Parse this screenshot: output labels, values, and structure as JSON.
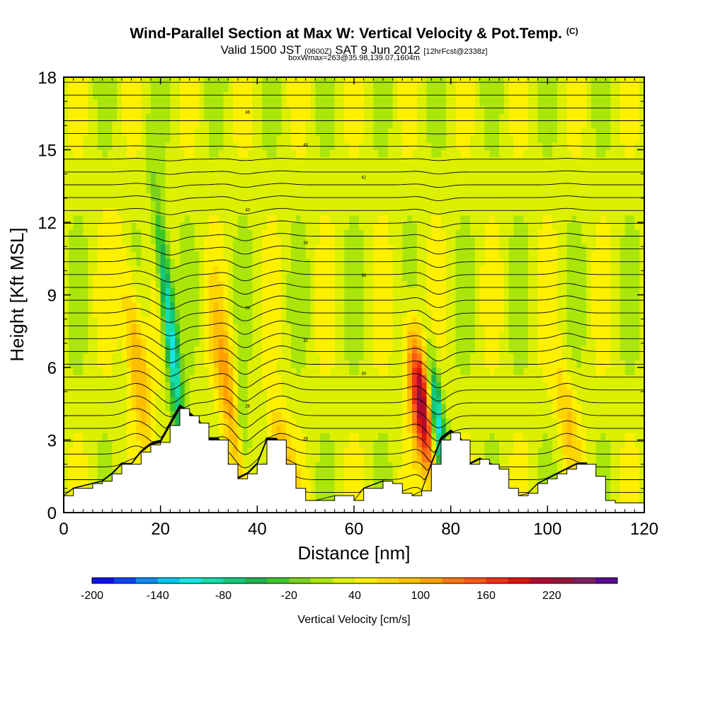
{
  "chart_data": {
    "type": "heatmap",
    "title": "Wind-Parallel Section at Max W: Vertical Velocity & Pot.Temp.",
    "title_suffix": "(C)",
    "subtitle_main": "Valid 1500 JST",
    "subtitle_zulu": "(0600Z)",
    "subtitle_date": "SAT 9 Jun 2012",
    "subtitle_fcst": "[12hrFcst@2338z]",
    "subtitle2": "boxWmax=263@35.98,139.07,1604m",
    "xlabel": "Distance [nm]",
    "ylabel": "Height [Kft MSL]",
    "xlim": [
      0,
      120
    ],
    "ylim": [
      0,
      18
    ],
    "x_ticks": [
      "0",
      "20",
      "40",
      "60",
      "80",
      "100",
      "120"
    ],
    "y_ticks": [
      "0",
      "3",
      "6",
      "9",
      "12",
      "15",
      "18"
    ],
    "colorbar": {
      "label": "Vertical Velocity [cm/s]",
      "tick_labels": [
        "-200",
        "-140",
        "-80",
        "-20",
        "40",
        "100",
        "160",
        "220"
      ],
      "colors": [
        "#0a14f0",
        "#0a46f5",
        "#0a8cf5",
        "#00c8f0",
        "#14e6e6",
        "#14dcaa",
        "#14c87a",
        "#1eb44b",
        "#3cc828",
        "#7ad21e",
        "#aae60a",
        "#dcf000",
        "#fff000",
        "#ffd700",
        "#ffbe00",
        "#ffa000",
        "#ff7814",
        "#ff5a14",
        "#f03214",
        "#dc140a",
        "#b40a32",
        "#96143c",
        "#7d1e64",
        "#5a0a96"
      ]
    },
    "updraft_cores": [
      {
        "x": 15,
        "z_range": [
          3,
          10
        ],
        "w_max": 80
      },
      {
        "x": 34,
        "z_range": [
          2,
          8
        ],
        "w_max": 80
      },
      {
        "x": 45,
        "z_range": [
          1,
          4
        ],
        "w_max": 70
      },
      {
        "x": 74,
        "z_range": [
          2,
          7
        ],
        "w_max": 200
      },
      {
        "x": 104,
        "z_range": [
          2,
          6
        ],
        "w_max": 50
      }
    ],
    "downdraft_cores": [
      {
        "x": 22,
        "z_range": [
          3,
          12
        ],
        "w_min": -150
      },
      {
        "x": 37,
        "z_range": [
          2,
          5
        ],
        "w_min": -60
      },
      {
        "x": 77,
        "z_range": [
          2,
          6
        ],
        "w_min": -170
      }
    ],
    "terrain_profile": {
      "x": [
        0,
        2,
        6,
        8,
        10,
        12,
        14,
        16,
        18,
        20,
        22,
        24,
        26,
        28,
        30,
        32,
        34,
        36,
        38,
        40,
        42,
        44,
        46,
        48,
        50,
        52,
        56,
        60,
        62,
        66,
        68,
        70,
        72,
        74,
        76,
        78,
        80,
        82,
        84,
        86,
        88,
        90,
        92,
        94,
        96,
        98,
        100,
        102,
        104,
        106,
        108,
        110,
        112,
        114,
        120
      ],
      "z": [
        0.7,
        1.0,
        1.2,
        1.3,
        1.6,
        2.0,
        2.0,
        2.5,
        2.8,
        2.9,
        3.6,
        4.3,
        4.0,
        3.7,
        3.0,
        3.0,
        2.0,
        1.4,
        1.6,
        2.0,
        3.0,
        3.0,
        2.0,
        1.0,
        0.5,
        0.5,
        0.7,
        0.5,
        1.0,
        1.3,
        1.2,
        0.8,
        0.7,
        0.9,
        2.0,
        3.0,
        3.3,
        3.0,
        2.0,
        2.2,
        2.0,
        1.8,
        1.0,
        0.7,
        0.8,
        1.2,
        1.4,
        1.6,
        1.8,
        2.0,
        2.0,
        1.5,
        0.5,
        0.4,
        0.4
      ]
    },
    "contour_labels": [
      "46",
      "44",
      "42",
      "40",
      "38",
      "36",
      "34",
      "32",
      "30",
      "28",
      "26"
    ],
    "grid": false
  }
}
